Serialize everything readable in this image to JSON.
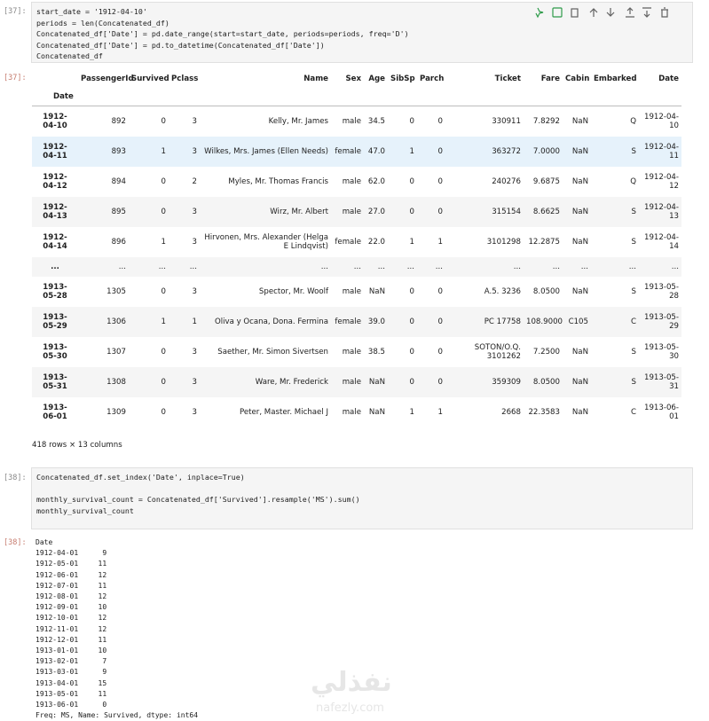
{
  "cells": [
    {
      "input_prompt": "[37]:",
      "code": [
        "start_date = '1912-04-10'",
        "periods = len(Concatenated_df)",
        "Concatenated_df['Date'] = pd.date_range(start=start_date, periods=periods, freq='D')",
        "Concatenated_df['Date'] = pd.to_datetime(Concatenated_df['Date'])",
        "Concatenated_df"
      ],
      "output_prompt": "[37]:",
      "output": {
        "columns": [
          "PassengerId",
          "Survived",
          "Pclass",
          "Name",
          "Sex",
          "Age",
          "SibSp",
          "Parch",
          "Ticket",
          "Fare",
          "Cabin",
          "Embarked",
          "Date"
        ],
        "index_name": "Date",
        "rows": [
          {
            "index": "1912-04-10",
            "values": [
              "892",
              "0",
              "3",
              "Kelly, Mr. James",
              "male",
              "34.5",
              "0",
              "0",
              "330911",
              "7.8292",
              "NaN",
              "Q",
              "1912-04-10"
            ]
          },
          {
            "index": "1912-04-11",
            "values": [
              "893",
              "1",
              "3",
              "Wilkes, Mrs. James (Ellen Needs)",
              "female",
              "47.0",
              "1",
              "0",
              "363272",
              "7.0000",
              "NaN",
              "S",
              "1912-04-11"
            ]
          },
          {
            "index": "1912-04-12",
            "values": [
              "894",
              "0",
              "2",
              "Myles, Mr. Thomas Francis",
              "male",
              "62.0",
              "0",
              "0",
              "240276",
              "9.6875",
              "NaN",
              "Q",
              "1912-04-12"
            ]
          },
          {
            "index": "1912-04-13",
            "values": [
              "895",
              "0",
              "3",
              "Wirz, Mr. Albert",
              "male",
              "27.0",
              "0",
              "0",
              "315154",
              "8.6625",
              "NaN",
              "S",
              "1912-04-13"
            ]
          },
          {
            "index": "1912-04-14",
            "values": [
              "896",
              "1",
              "3",
              "Hirvonen, Mrs. Alexander (Helga E Lindqvist)",
              "female",
              "22.0",
              "1",
              "1",
              "3101298",
              "12.2875",
              "NaN",
              "S",
              "1912-04-14"
            ]
          },
          {
            "index": "...",
            "values": [
              "...",
              "...",
              "...",
              "...",
              "...",
              "...",
              "...",
              "...",
              "...",
              "...",
              "...",
              "...",
              "..."
            ]
          },
          {
            "index": "1913-05-28",
            "values": [
              "1305",
              "0",
              "3",
              "Spector, Mr. Woolf",
              "male",
              "NaN",
              "0",
              "0",
              "A.5. 3236",
              "8.0500",
              "NaN",
              "S",
              "1913-05-28"
            ]
          },
          {
            "index": "1913-05-29",
            "values": [
              "1306",
              "1",
              "1",
              "Oliva y Ocana, Dona. Fermina",
              "female",
              "39.0",
              "0",
              "0",
              "PC 17758",
              "108.9000",
              "C105",
              "C",
              "1913-05-29"
            ]
          },
          {
            "index": "1913-05-30",
            "values": [
              "1307",
              "0",
              "3",
              "Saether, Mr. Simon Sivertsen",
              "male",
              "38.5",
              "0",
              "0",
              "SOTON/O.Q. 3101262",
              "7.2500",
              "NaN",
              "S",
              "1913-05-30"
            ]
          },
          {
            "index": "1913-05-31",
            "values": [
              "1308",
              "0",
              "3",
              "Ware, Mr. Frederick",
              "male",
              "NaN",
              "0",
              "0",
              "359309",
              "8.0500",
              "NaN",
              "S",
              "1913-05-31"
            ]
          },
          {
            "index": "1913-06-01",
            "values": [
              "1309",
              "0",
              "3",
              "Peter, Master. Michael J",
              "male",
              "NaN",
              "1",
              "1",
              "2668",
              "22.3583",
              "NaN",
              "C",
              "1913-06-01"
            ]
          }
        ],
        "footer": "418 rows × 13 columns"
      }
    },
    {
      "input_prompt": "[38]:",
      "code": [
        "Concatenated_df.set_index('Date', inplace=True)",
        "monthly_survival_count = Concatenated_df['Survived'].resample('MS').sum()",
        "monthly_survival_count"
      ],
      "output_prompt": "[38]:",
      "output": {
        "header": "Date",
        "rows": [
          [
            "1912-04-01",
            9
          ],
          [
            "1912-05-01",
            11
          ],
          [
            "1912-06-01",
            12
          ],
          [
            "1912-07-01",
            11
          ],
          [
            "1912-08-01",
            12
          ],
          [
            "1912-09-01",
            10
          ],
          [
            "1912-10-01",
            12
          ],
          [
            "1912-11-01",
            12
          ],
          [
            "1912-12-01",
            11
          ],
          [
            "1913-01-01",
            10
          ],
          [
            "1913-02-01",
            7
          ],
          [
            "1913-03-01",
            9
          ],
          [
            "1913-04-01",
            15
          ],
          [
            "1913-05-01",
            11
          ],
          [
            "1913-06-01",
            0
          ]
        ],
        "footer": "Freq: MS, Name: Survived, dtype: int64"
      }
    }
  ],
  "watermark": {
    "arabic": "نفذلي",
    "latin": "nafezly.com"
  }
}
